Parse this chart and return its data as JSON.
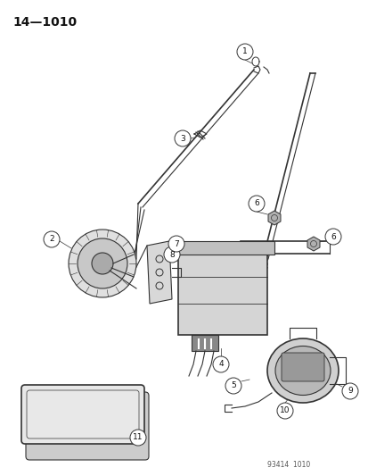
{
  "title": "14—1010",
  "subtitle": "93414  1010",
  "bg_color": "#ffffff",
  "line_color": "#333333",
  "label_color": "#111111",
  "figsize": [
    4.14,
    5.33
  ],
  "dpi": 100
}
